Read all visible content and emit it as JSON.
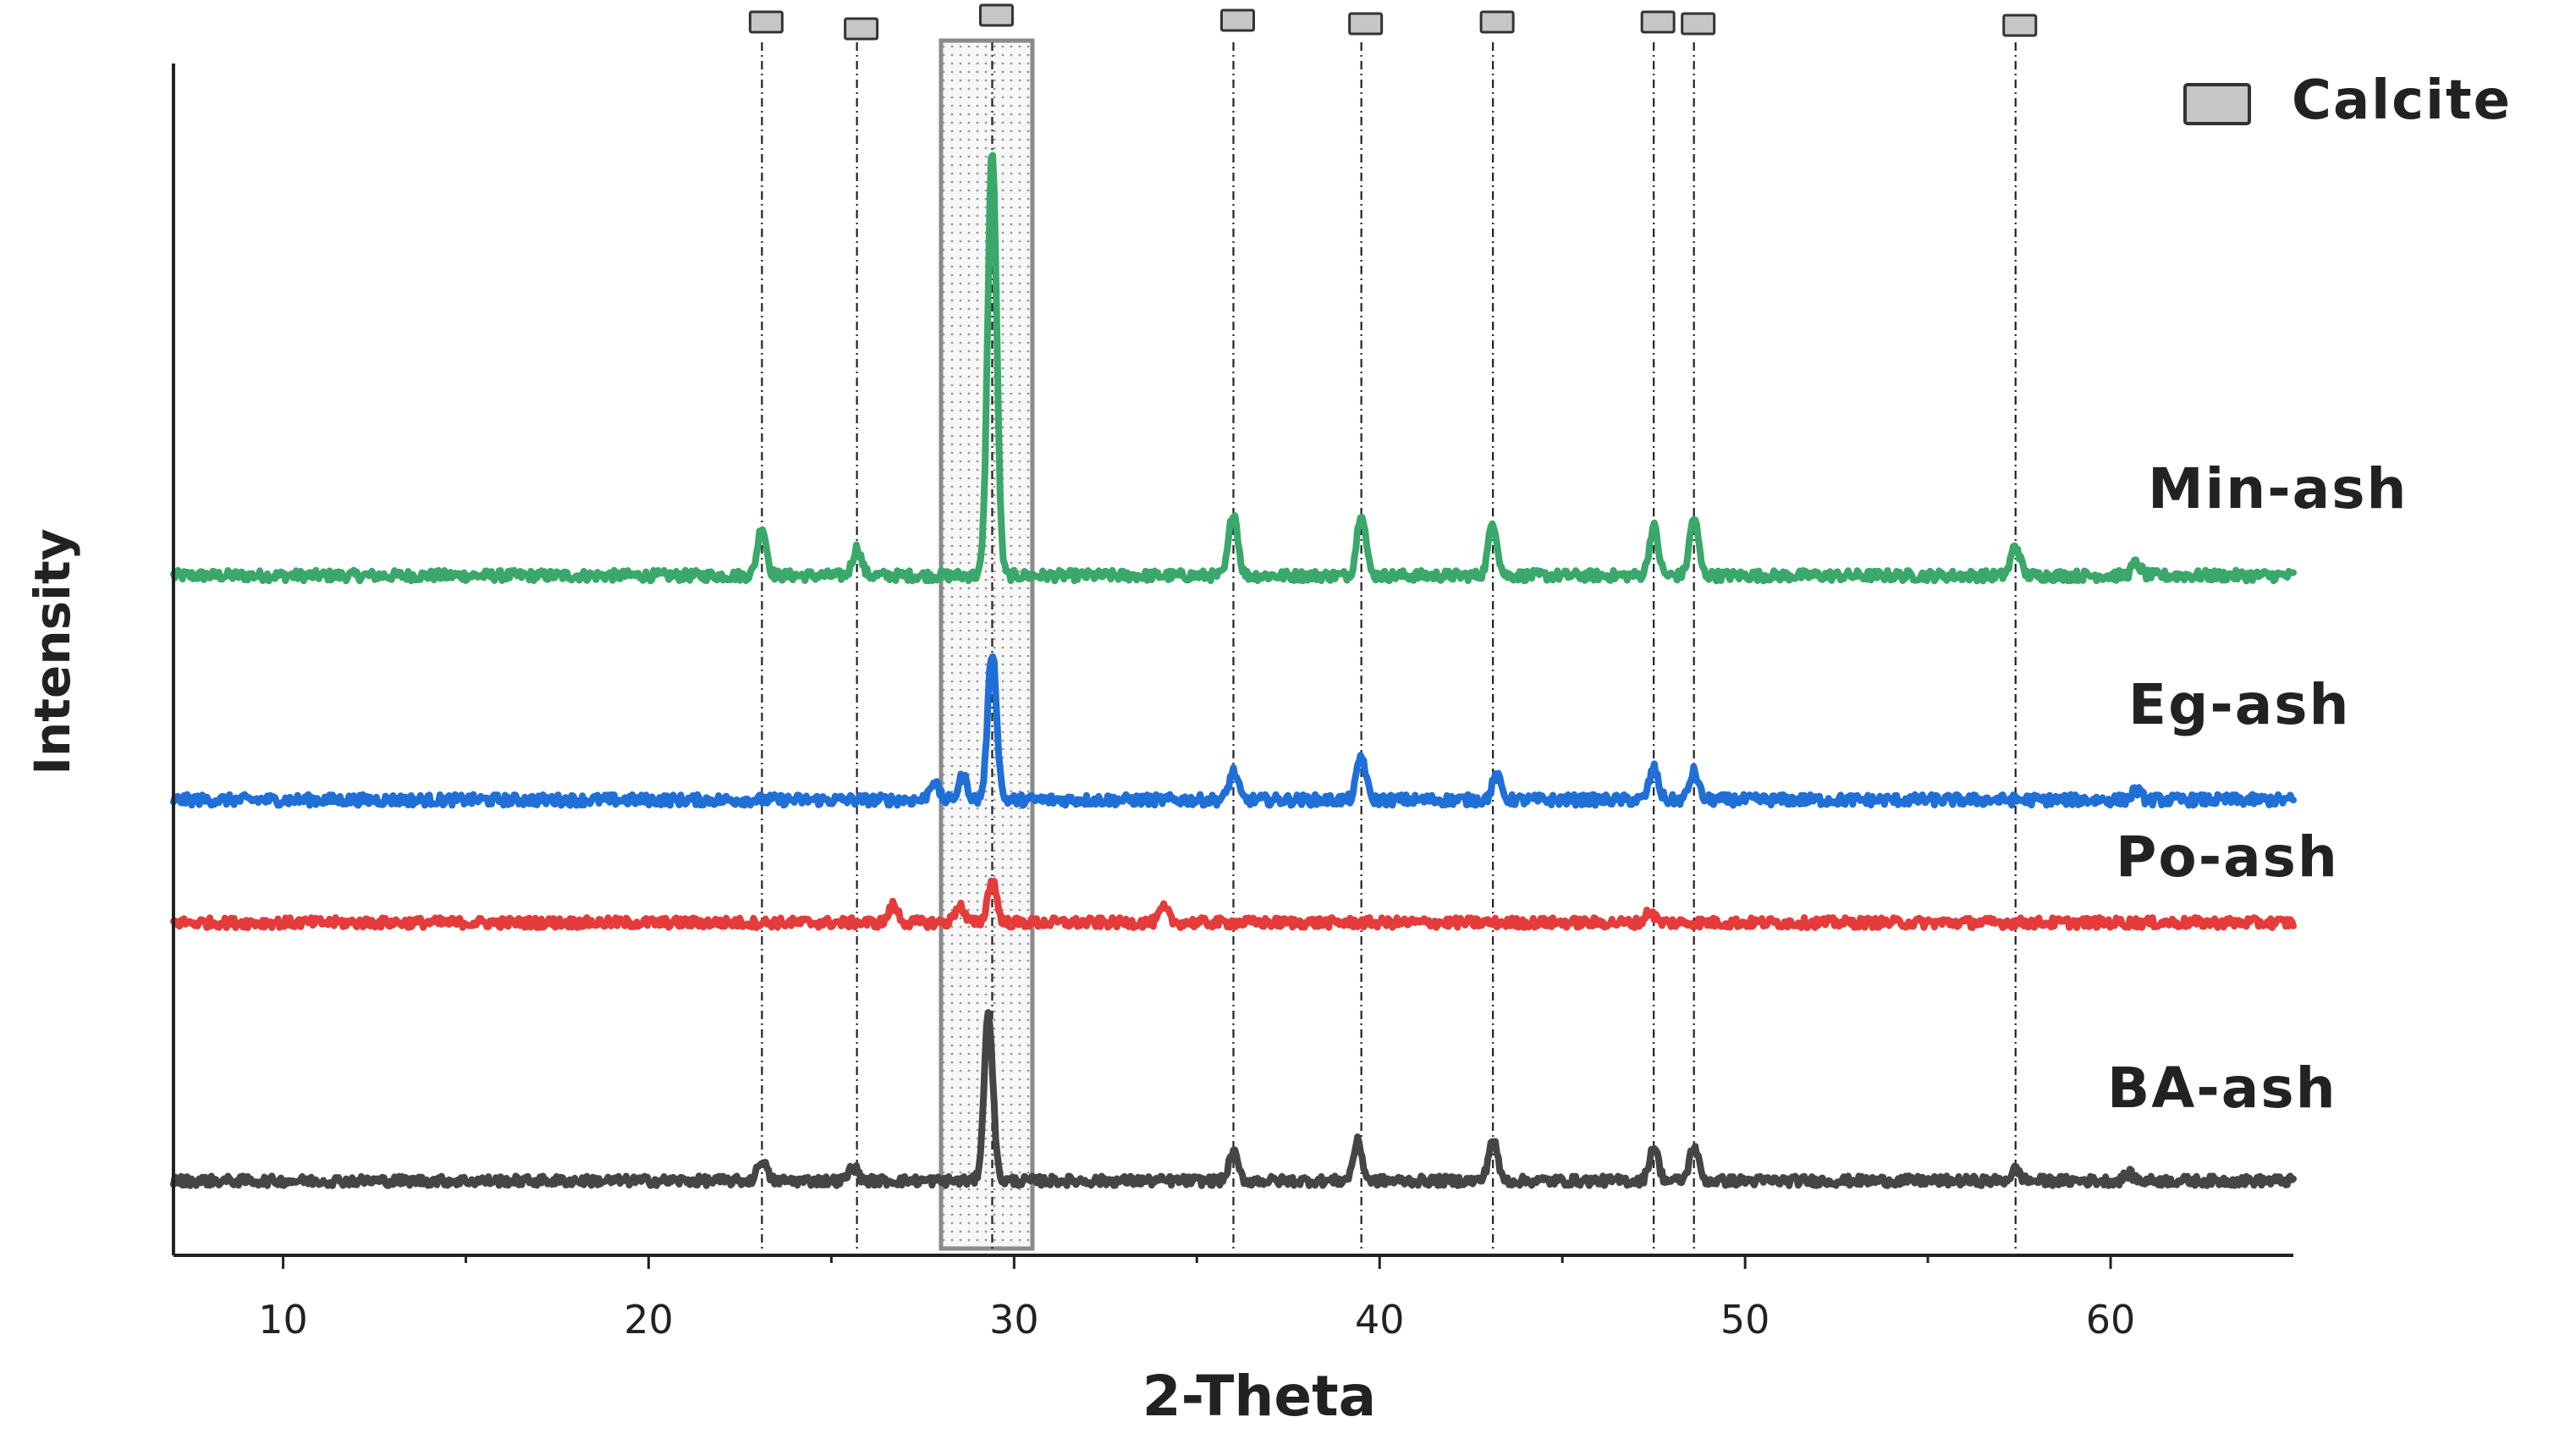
{
  "chart_data": {
    "type": "line",
    "title": "",
    "xlabel": "2-Theta",
    "ylabel": "Intensity",
    "xlim": [
      7,
      65
    ],
    "xticks": [
      10,
      20,
      30,
      40,
      50,
      60
    ],
    "y_tick_labels": false,
    "legend": {
      "label": "Calcite",
      "position": "top-right",
      "marker": "gray-square"
    },
    "highlight_region": {
      "from": 28,
      "to": 30.5,
      "pattern": "dotted"
    },
    "calcite_reference_peaks": [
      23.1,
      25.7,
      29.4,
      36.0,
      39.5,
      43.1,
      47.5,
      48.6,
      57.4
    ],
    "series": [
      {
        "name": "Min-ash",
        "color": "#3aa86b",
        "baseline": 0.0,
        "noise": 0.035,
        "peaks": [
          [
            23.1,
            0.32
          ],
          [
            25.7,
            0.18
          ],
          [
            29.4,
            2.8
          ],
          [
            36.0,
            0.42
          ],
          [
            39.5,
            0.42
          ],
          [
            43.1,
            0.35
          ],
          [
            47.5,
            0.32
          ],
          [
            48.6,
            0.38
          ],
          [
            57.4,
            0.2
          ],
          [
            60.7,
            0.08
          ]
        ]
      },
      {
        "name": "Eg-ash",
        "color": "#1f6fd6",
        "baseline": 0.0,
        "noise": 0.035,
        "peaks": [
          [
            27.8,
            0.12
          ],
          [
            28.6,
            0.15
          ],
          [
            29.4,
            0.95
          ],
          [
            36.0,
            0.18
          ],
          [
            39.5,
            0.28
          ],
          [
            43.2,
            0.15
          ],
          [
            47.5,
            0.2
          ],
          [
            48.6,
            0.18
          ],
          [
            60.7,
            0.06
          ]
        ]
      },
      {
        "name": "Po-ash",
        "color": "#e53b3b",
        "baseline": 0.0,
        "noise": 0.035,
        "peaks": [
          [
            26.7,
            0.12
          ],
          [
            28.5,
            0.12
          ],
          [
            29.4,
            0.3
          ],
          [
            34.1,
            0.1
          ],
          [
            47.4,
            0.08
          ]
        ]
      },
      {
        "name": "BA-ash",
        "color": "#454545",
        "baseline": 0.0,
        "noise": 0.035,
        "peaks": [
          [
            23.1,
            0.15
          ],
          [
            25.6,
            0.1
          ],
          [
            29.3,
            1.2
          ],
          [
            36.0,
            0.2
          ],
          [
            39.4,
            0.28
          ],
          [
            43.1,
            0.3
          ],
          [
            47.5,
            0.25
          ],
          [
            48.6,
            0.25
          ],
          [
            57.4,
            0.08
          ],
          [
            60.5,
            0.05
          ]
        ]
      }
    ]
  }
}
